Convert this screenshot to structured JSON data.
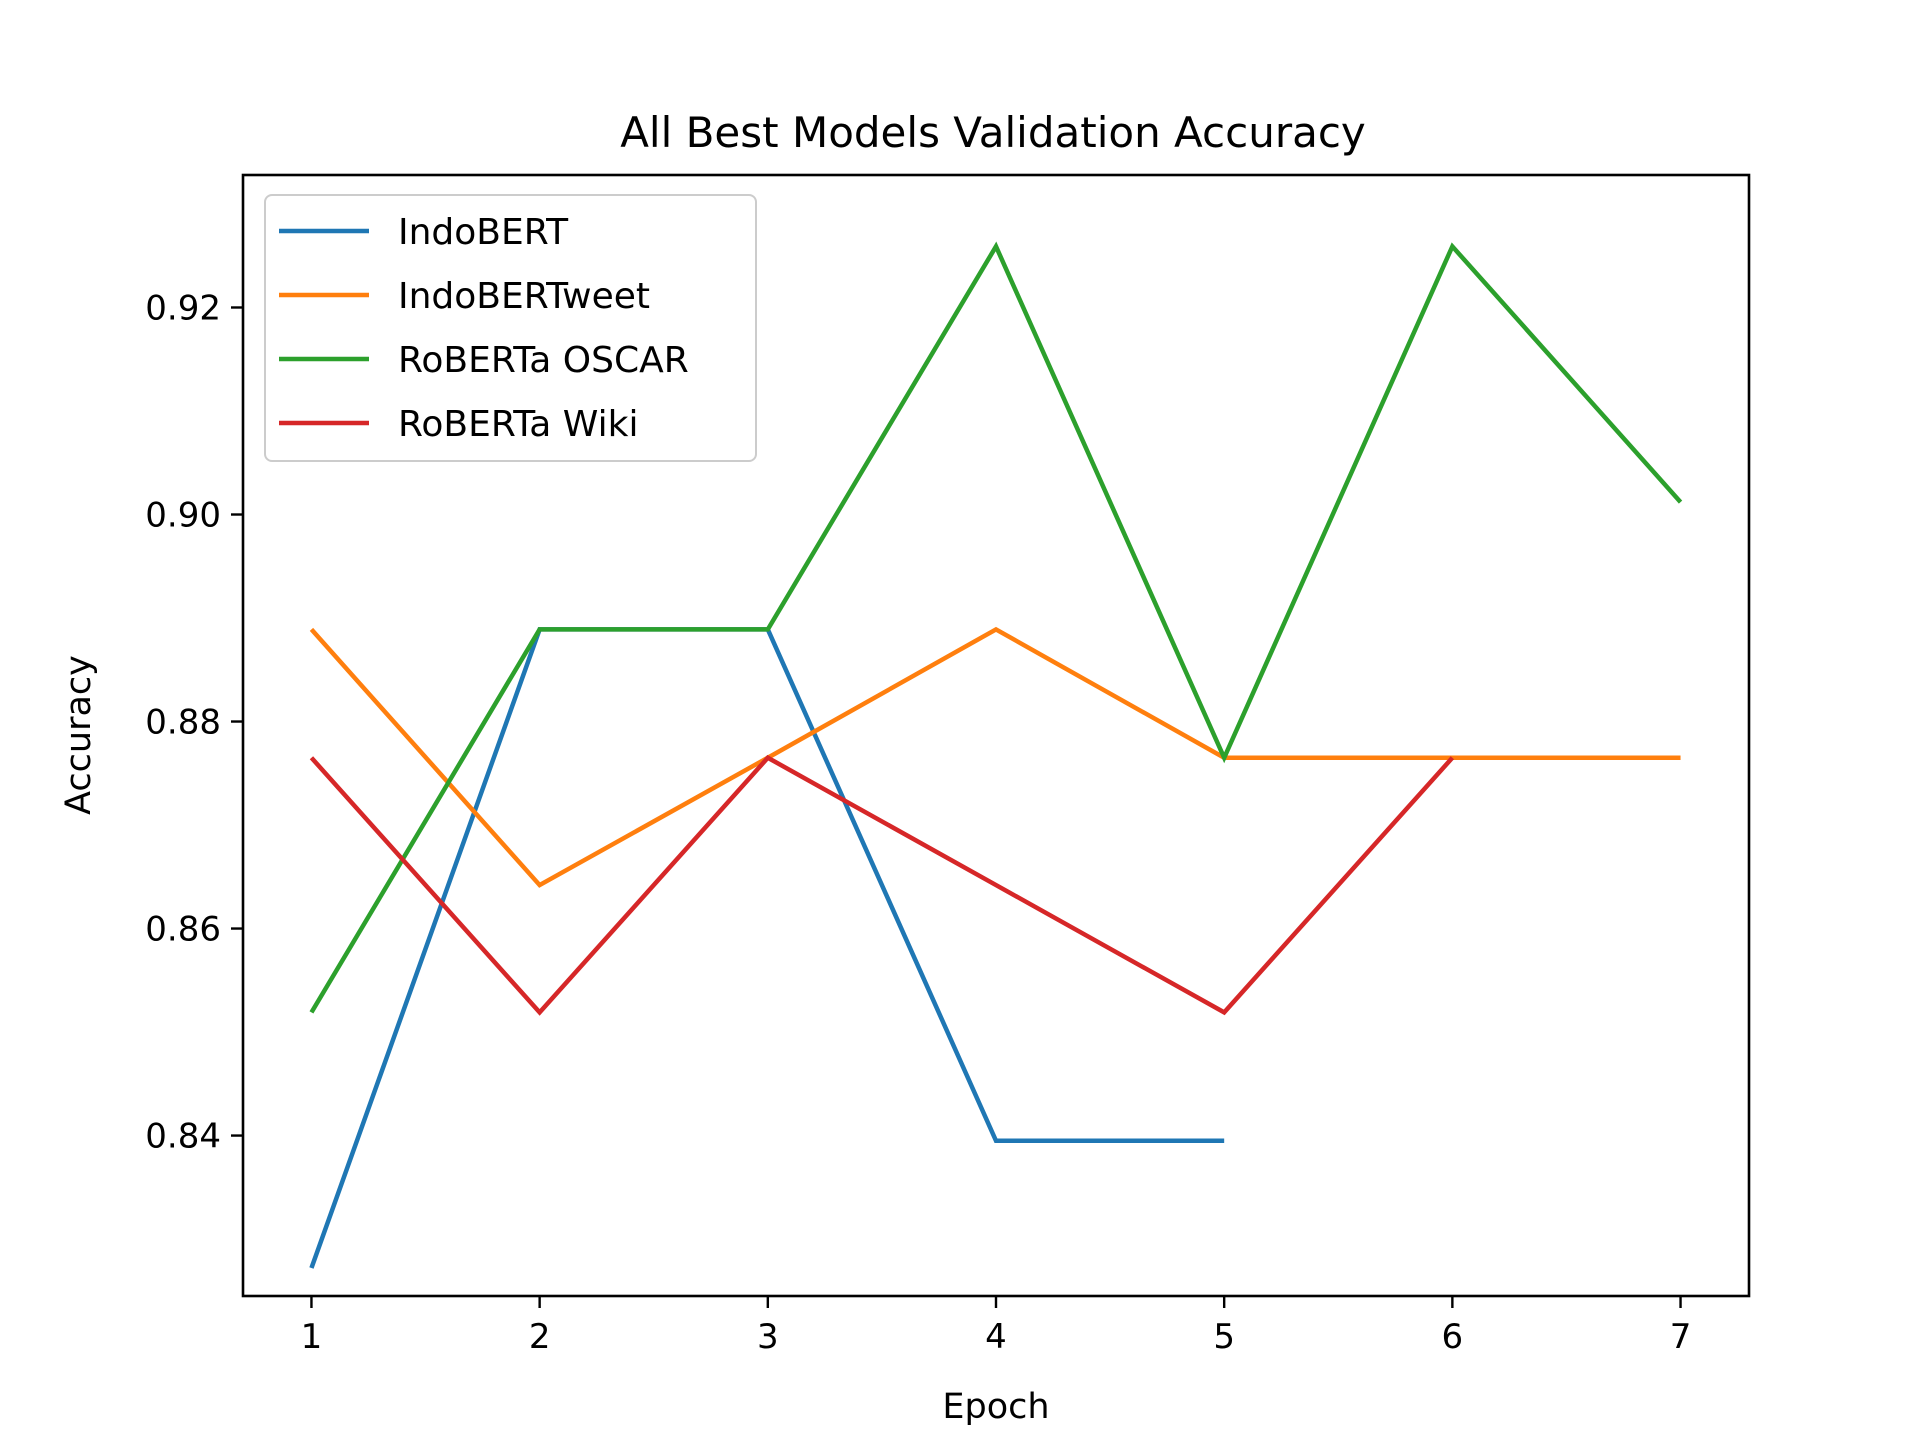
{
  "chart_data": {
    "type": "line",
    "title": "All Best Models Validation Accuracy",
    "xlabel": "Epoch",
    "ylabel": "Accuracy",
    "xlim": [
      0.7,
      7.3
    ],
    "ylim": [
      0.8245,
      0.9328
    ],
    "x_ticks": [
      1,
      2,
      3,
      4,
      5,
      6,
      7
    ],
    "y_ticks": [
      0.84,
      0.86,
      0.88,
      0.9,
      0.92
    ],
    "y_tick_labels": [
      "0.84",
      "0.86",
      "0.88",
      "0.90",
      "0.92"
    ],
    "legend_position": "upper-left",
    "grid": false,
    "series": [
      {
        "name": "IndoBERT",
        "color": "#1f77b4",
        "x": [
          1,
          2,
          3,
          4,
          5
        ],
        "values": [
          0.8272,
          0.8889,
          0.8889,
          0.8395,
          0.8395
        ]
      },
      {
        "name": "IndoBERTweet",
        "color": "#ff7f0e",
        "x": [
          1,
          2,
          3,
          4,
          5,
          6,
          7
        ],
        "values": [
          0.8889,
          0.8642,
          0.8765,
          0.8889,
          0.8765,
          0.8765,
          0.8765
        ]
      },
      {
        "name": "RoBERTa OSCAR",
        "color": "#2ca02c",
        "x": [
          1,
          2,
          3,
          4,
          5,
          6,
          7
        ],
        "values": [
          0.8519,
          0.8889,
          0.8889,
          0.9259,
          0.8765,
          0.9259,
          0.9012
        ]
      },
      {
        "name": "RoBERTa Wiki",
        "color": "#d62728",
        "x": [
          1,
          2,
          3,
          4,
          5,
          6
        ],
        "values": [
          0.8765,
          0.8519,
          0.8765,
          0.8642,
          0.8519,
          0.8765
        ]
      }
    ]
  }
}
